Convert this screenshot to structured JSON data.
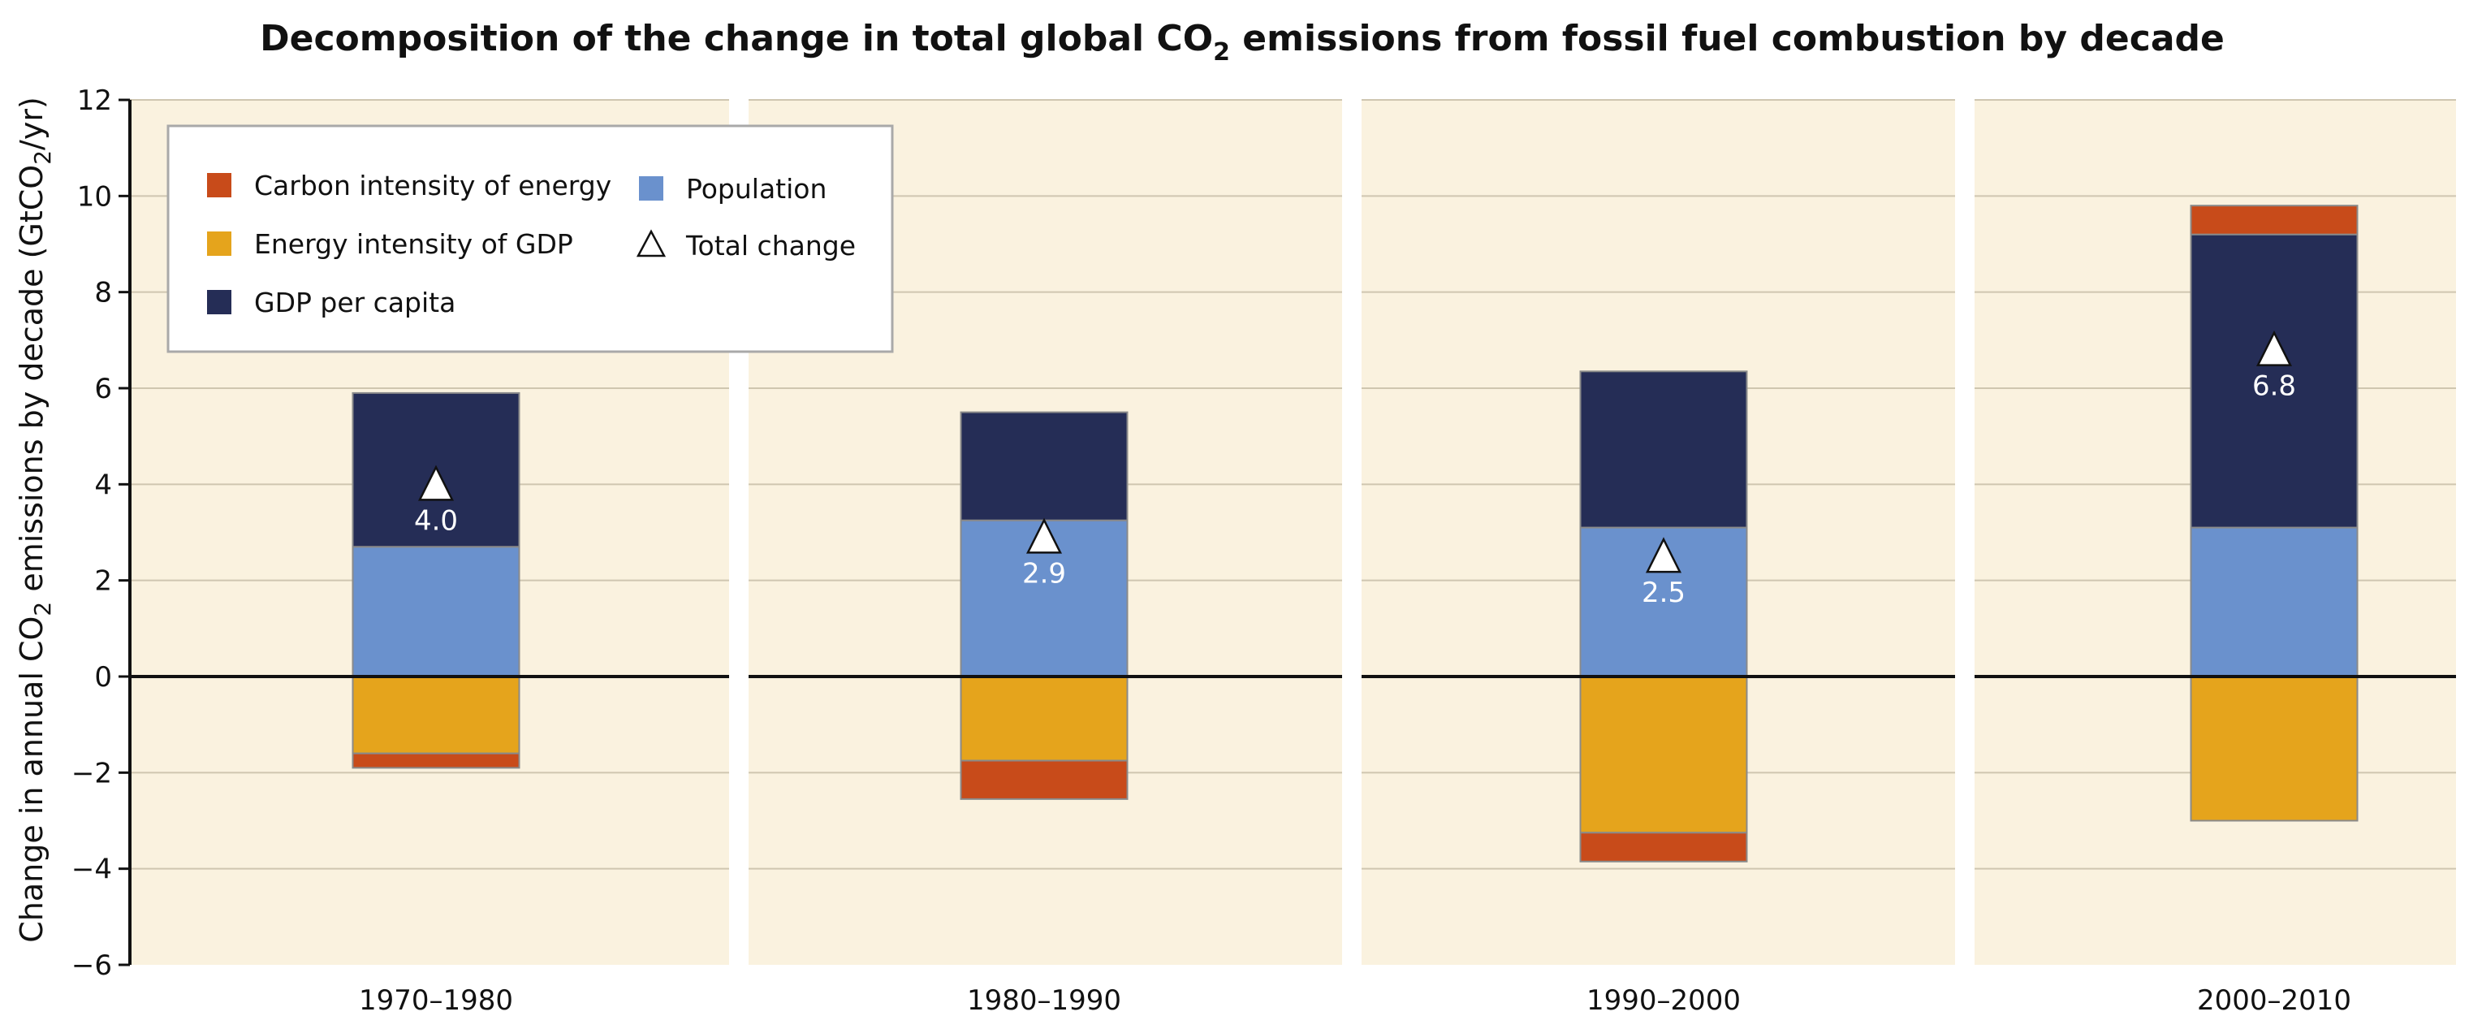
{
  "chart_data": {
    "type": "bar",
    "stacked": true,
    "title_main": "Decomposition of the change in total global CO",
    "title_sub": "2",
    "title_rest": " emissions from fossil fuel combustion by decade",
    "ylabel_main": "Change in annual CO",
    "ylabel_sub": "2",
    "ylabel_mid": "  emissions by decade (GtCO",
    "ylabel_sub2": "2",
    "ylabel_end": "/yr)",
    "xlabel": "",
    "ylim": [
      -6,
      12
    ],
    "yticks": [
      12,
      10,
      8,
      6,
      4,
      2,
      0,
      -2,
      -4,
      -6
    ],
    "ytick_labels": [
      "12",
      "10",
      "8",
      "6",
      "4",
      "2",
      "0",
      "−2",
      "−4",
      "−6"
    ],
    "grid": true,
    "categories": [
      "1970–1980",
      "1980–1990",
      "1990–2000",
      "2000–2010"
    ],
    "series": [
      {
        "name": "Carbon intensity of energy",
        "key": "carbon",
        "color": "#c84b1a",
        "values": [
          -0.3,
          -0.8,
          -0.6,
          0.6
        ]
      },
      {
        "name": "Energy intensity of GDP",
        "key": "energy",
        "color": "#e5a41c",
        "values": [
          -1.6,
          -1.75,
          -3.25,
          -3.0
        ]
      },
      {
        "name": "GDP per capita",
        "key": "gdp",
        "color": "#252d56",
        "values": [
          3.2,
          2.25,
          3.25,
          6.1
        ]
      },
      {
        "name": "Population",
        "key": "population",
        "color": "#6a91cd",
        "values": [
          2.7,
          3.25,
          3.1,
          3.1
        ]
      }
    ],
    "total_change": {
      "name": "Total change",
      "values": [
        4.0,
        2.9,
        2.5,
        6.8
      ],
      "labels": [
        "4.0",
        "2.9",
        "2.5",
        "6.8"
      ]
    },
    "legend": {
      "position": "top-left",
      "items": [
        {
          "label": "Carbon intensity of energy",
          "marker": "square",
          "color": "#c84b1a"
        },
        {
          "label": "Energy intensity of GDP",
          "marker": "square",
          "color": "#e5a41c"
        },
        {
          "label": "GDP per capita",
          "marker": "square",
          "color": "#252d56"
        },
        {
          "label": "Population",
          "marker": "square",
          "color": "#6a91cd"
        },
        {
          "label": "Total change",
          "marker": "triangle",
          "color": "#ffffff"
        }
      ]
    },
    "colors": {
      "panel_bg": "#faf2df",
      "gridline": "#cfc6b0",
      "zero_line": "#111111",
      "axis": "#111111"
    }
  }
}
